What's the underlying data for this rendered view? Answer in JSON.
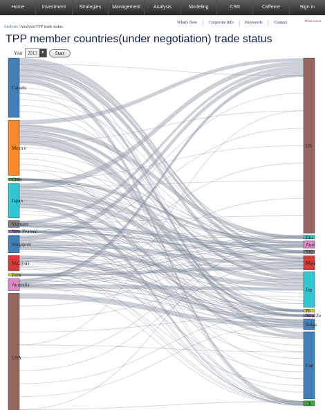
{
  "nav": {
    "items": [
      "Home",
      "Investment",
      "Strategies",
      "Management",
      "Analysis",
      "Modeling",
      "CSR",
      "Caffeine",
      "Sign in"
    ]
  },
  "sublinks": [
    "What's New",
    "Corporate Info",
    "Keywords",
    "Contact"
  ],
  "site_menu": "Site menu",
  "breadcrumb": {
    "link": "Analysis",
    "rest": " /Analysis/TPP trade status."
  },
  "page_title": "TPP member countries(under negotiation) trade status",
  "controls": {
    "year_label": "Year",
    "year_value": "2013",
    "dropdown_icon": "chevron-down-icon",
    "start_label": "Start"
  },
  "chart_data": {
    "type": "sankey",
    "year": "2013",
    "link_color": "#9aa4b2",
    "sources": [
      {
        "name": "Canada",
        "size": 96,
        "color": "#3f80b8"
      },
      {
        "name": "Mexico",
        "size": 90,
        "color": "#f8892b"
      },
      {
        "name": "Chile",
        "size": 4,
        "color": "#3cab45"
      },
      {
        "name": "Japan",
        "size": 56,
        "color": "#2fc7d3"
      },
      {
        "name": "Vietnam",
        "size": 11,
        "color": "#7d7d7d"
      },
      {
        "name": "New Zealand",
        "size": 4,
        "color": "#8c6fb5"
      },
      {
        "name": "Singapore",
        "size": 28,
        "color": "#3f80b8"
      },
      {
        "name": "Malaysia",
        "size": 25,
        "color": "#d83a39"
      },
      {
        "name": "Peru",
        "size": 4,
        "color": "#c9cf3b"
      },
      {
        "name": "Australia",
        "size": 19,
        "color": "#e087c8"
      },
      {
        "name": "USA",
        "size": 210,
        "color": "#94665e"
      }
    ],
    "targets": [
      {
        "name": "US",
        "size": 248,
        "color": "#94665e"
      },
      {
        "name": "Bru",
        "size": 5,
        "color": "#2fc7d3"
      },
      {
        "name": "Aust",
        "size": 10,
        "color": "#e087c8"
      },
      {
        "name": "Viet",
        "size": 5,
        "color": "#7d7d7d"
      },
      {
        "name": "Mala",
        "size": 20,
        "color": "#d83a39"
      },
      {
        "name": "Jap",
        "size": 50,
        "color": "#2fc7d3"
      },
      {
        "name": "Pe",
        "size": 4,
        "color": "#c9cf3b"
      },
      {
        "name": "New Ze",
        "size": 4,
        "color": "#8c6fb5"
      },
      {
        "name": "Singa",
        "size": 15,
        "color": "#3f80b8"
      },
      {
        "name": "Can",
        "size": 95,
        "color": "#3f80b8"
      },
      {
        "name": "Ch",
        "size": 7,
        "color": "#3cab45"
      }
    ]
  }
}
